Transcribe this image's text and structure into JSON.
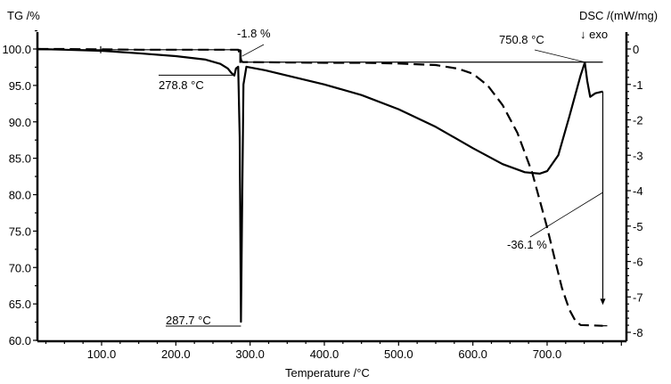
{
  "chart_data": {
    "type": "line",
    "title": "",
    "xlabel": "Temperature /°C",
    "ylabel": "TG /%",
    "y2label": "DSC /(mW/mg)",
    "exo_label": "↓ exo",
    "xlim": [
      14,
      806
    ],
    "ylim": [
      60.0,
      100.0
    ],
    "y2lim": [
      -8,
      0
    ],
    "grid": false,
    "x_ticks": [
      100.0,
      200.0,
      300.0,
      400.0,
      500.0,
      600.0,
      700.0
    ],
    "x_tick_labels": [
      "100.0",
      "200.0",
      "300.0",
      "400.0",
      "500.0",
      "600.0",
      "700.0"
    ],
    "y_ticks": [
      100.0,
      95.0,
      90.0,
      85.0,
      80.0,
      75.0,
      70.0,
      65.0,
      60.0
    ],
    "y_tick_labels": [
      "100.0",
      "95.0",
      "90.0",
      "85.0",
      "80.0",
      "75.0",
      "70.0",
      "65.0",
      "60.0"
    ],
    "y2_ticks": [
      0,
      -1,
      -2,
      -3,
      -4,
      -5,
      -6,
      -7,
      -8
    ],
    "y2_tick_labels": [
      "0",
      "-1",
      "-2",
      "-3",
      "-4",
      "-5",
      "-6",
      "-7",
      "-8"
    ],
    "series": [
      {
        "name": "TG",
        "axis": "left",
        "style": "dashed",
        "x": [
          14,
          50,
          100,
          150,
          200,
          250,
          275,
          284,
          286,
          288,
          290,
          300,
          350,
          400,
          450,
          500,
          550,
          580,
          600,
          620,
          640,
          660,
          680,
          700,
          710,
          720,
          730,
          738,
          745,
          760,
          775
        ],
        "values": [
          100.0,
          100.0,
          99.95,
          99.9,
          99.9,
          99.9,
          99.9,
          99.9,
          99.4,
          98.4,
          98.2,
          98.2,
          98.15,
          98.1,
          98.1,
          98.0,
          97.8,
          97.3,
          96.6,
          95.0,
          92.3,
          88.5,
          83.0,
          75.5,
          71.3,
          67.2,
          64.2,
          62.7,
          62.1,
          62.05,
          62.0
        ]
      },
      {
        "name": "DSC",
        "axis": "right",
        "style": "solid",
        "x": [
          14,
          50,
          100,
          150,
          200,
          240,
          260,
          270,
          275,
          278.8,
          281,
          284,
          286,
          287.7,
          289,
          291,
          295,
          320,
          350,
          400,
          450,
          500,
          550,
          600,
          640,
          670,
          690,
          700,
          715,
          730,
          745,
          750.8,
          754,
          758,
          765,
          775
        ],
        "values": [
          0.0,
          -0.02,
          -0.05,
          -0.12,
          -0.2,
          -0.3,
          -0.42,
          -0.55,
          -0.68,
          -0.75,
          -0.55,
          -0.5,
          -2.5,
          -7.7,
          -5.0,
          -1.0,
          -0.5,
          -0.6,
          -0.75,
          -1.0,
          -1.3,
          -1.7,
          -2.2,
          -2.8,
          -3.25,
          -3.48,
          -3.52,
          -3.45,
          -3.0,
          -1.9,
          -0.75,
          -0.38,
          -0.9,
          -1.35,
          -1.25,
          -1.2
        ]
      }
    ],
    "annotations": [
      {
        "text": "-1.8 %",
        "type": "mass_step",
        "x": 287,
        "from": 99.9,
        "to": 98.1
      },
      {
        "text": "278.8 °C",
        "type": "peak",
        "series": "DSC",
        "x": 278.8,
        "y": -0.75
      },
      {
        "text": "287.7 °C",
        "type": "peak",
        "series": "DSC",
        "x": 287.7,
        "y": -7.7
      },
      {
        "text": "750.8 °C",
        "type": "peak",
        "series": "DSC",
        "x": 750.8,
        "y": -0.38
      },
      {
        "text": "-36.1 %",
        "type": "mass_step",
        "x": 775,
        "from": 98.2,
        "to": 62.1
      }
    ],
    "legend": "none"
  },
  "labels": {
    "tg_axis": "TG /%",
    "dsc_axis": "DSC /(mW/mg)",
    "exo": "↓ exo",
    "x_axis": "Temperature /°C",
    "ann_mass1": "-1.8 %",
    "ann_peak1": "278.8 °C",
    "ann_peak2": "287.7 °C",
    "ann_peak3": "750.8 °C",
    "ann_mass2": "-36.1 %"
  }
}
